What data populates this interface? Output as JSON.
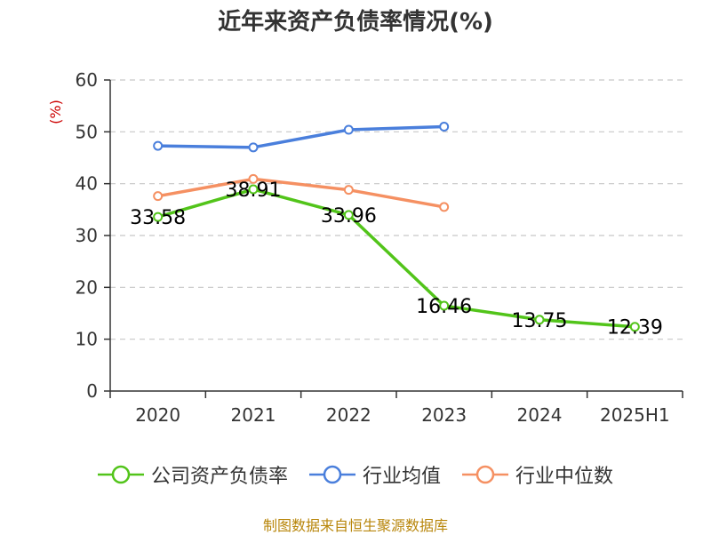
{
  "title": "近年来资产负债率情况(%)",
  "footer": "制图数据来自恒生聚源数据库",
  "chart_data": {
    "type": "line",
    "title": "近年来资产负债率情况(%)",
    "ylabel": "(%)",
    "xlabel": "",
    "categories": [
      "2020",
      "2021",
      "2022",
      "2023",
      "2024",
      "2025H1"
    ],
    "ylim": [
      0,
      60
    ],
    "yticks": [
      0,
      10,
      20,
      30,
      40,
      50,
      60
    ],
    "grid": "horizontal-dashed",
    "legend_position": "bottom",
    "series": [
      {
        "name": "公司资产负债率",
        "color": "#52c41a",
        "values": [
          33.58,
          38.91,
          33.96,
          16.46,
          13.75,
          12.39
        ],
        "labels": [
          "33.58",
          "38.91",
          "33.96",
          "16.46",
          "13.75",
          "12.39"
        ]
      },
      {
        "name": "行业均值",
        "color": "#4a7fdc",
        "values": [
          47.3,
          47.0,
          50.4,
          51.0,
          null,
          null
        ]
      },
      {
        "name": "行业中位数",
        "color": "#f59062",
        "values": [
          37.6,
          40.9,
          38.8,
          35.5,
          null,
          null
        ]
      }
    ]
  }
}
